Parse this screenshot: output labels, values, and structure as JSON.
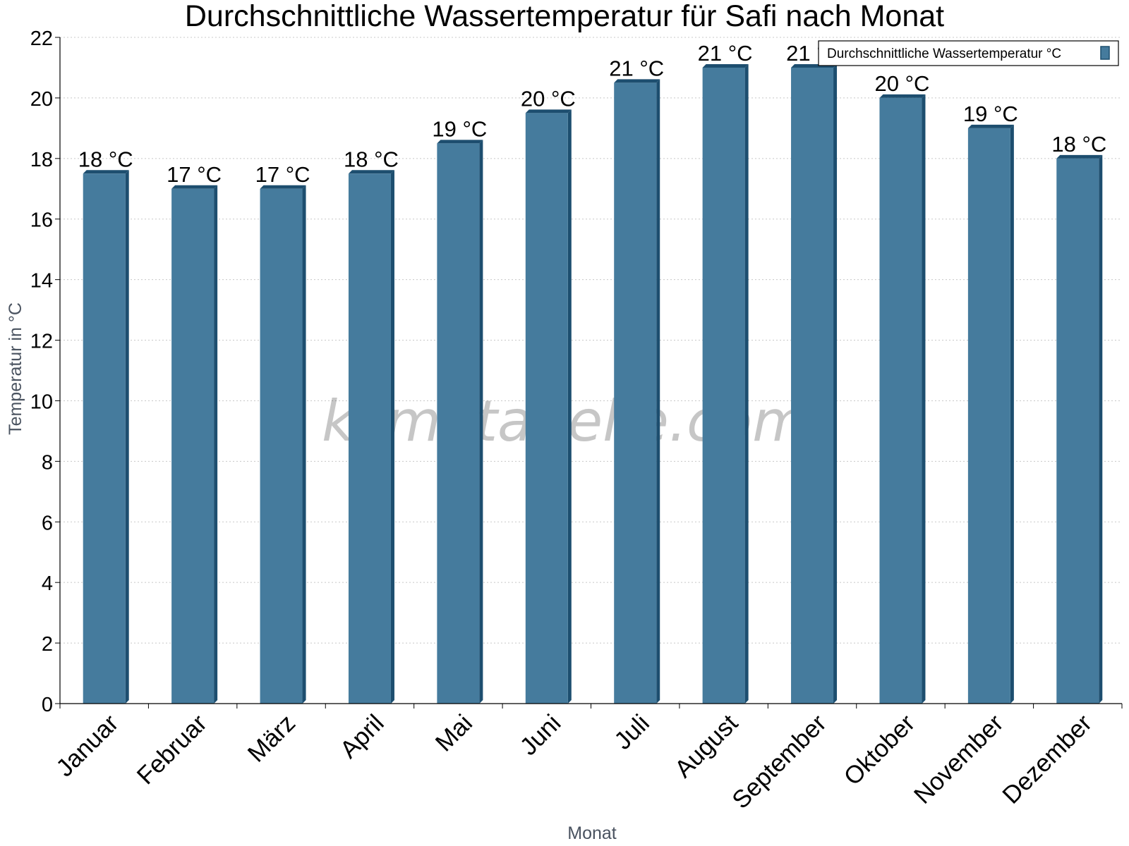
{
  "chart_data": {
    "type": "bar",
    "title": "Durchschnittliche Wassertemperatur für Safi nach Monat",
    "xlabel": "Monat",
    "ylabel": "Temperatur in °C",
    "ylim": [
      0,
      22
    ],
    "yticks": [
      0,
      2,
      4,
      6,
      8,
      10,
      12,
      14,
      16,
      18,
      20,
      22
    ],
    "grid": true,
    "legend_position": "top-right",
    "categories": [
      "Januar",
      "Februar",
      "März",
      "April",
      "Mai",
      "Juni",
      "Juli",
      "August",
      "September",
      "Oktober",
      "November",
      "Dezember"
    ],
    "series": [
      {
        "name": "Durchschnittliche Wassertemperatur °C",
        "values": [
          17.5,
          17,
          17,
          17.5,
          18.5,
          19.5,
          20.5,
          21,
          21,
          20,
          19,
          18
        ],
        "labels": [
          "18 °C",
          "17 °C",
          "17 °C",
          "18 °C",
          "19 °C",
          "20 °C",
          "21 °C",
          "21 °C",
          "21 °C",
          "20 °C",
          "19 °C",
          "18 °C"
        ]
      }
    ],
    "colors": {
      "bar": "#457b9d",
      "bar_shadow": "#1d4e6f",
      "grid": "#c8c8c8",
      "axis": "#000000"
    },
    "watermark": "klimatabelle.com"
  }
}
